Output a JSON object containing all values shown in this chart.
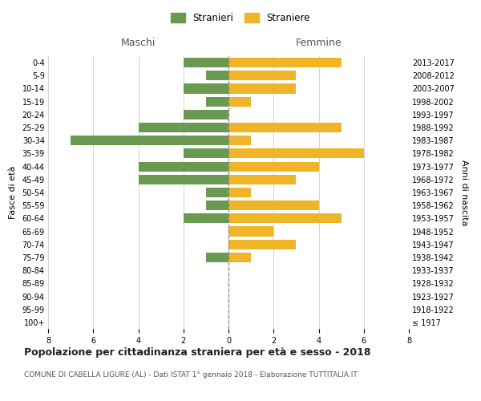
{
  "age_groups": [
    "100+",
    "95-99",
    "90-94",
    "85-89",
    "80-84",
    "75-79",
    "70-74",
    "65-69",
    "60-64",
    "55-59",
    "50-54",
    "45-49",
    "40-44",
    "35-39",
    "30-34",
    "25-29",
    "20-24",
    "15-19",
    "10-14",
    "5-9",
    "0-4"
  ],
  "birth_years": [
    "≤ 1917",
    "1918-1922",
    "1923-1927",
    "1928-1932",
    "1933-1937",
    "1938-1942",
    "1943-1947",
    "1948-1952",
    "1953-1957",
    "1958-1962",
    "1963-1967",
    "1968-1972",
    "1973-1977",
    "1978-1982",
    "1983-1987",
    "1988-1992",
    "1993-1997",
    "1998-2002",
    "2003-2007",
    "2008-2012",
    "2013-2017"
  ],
  "maschi": [
    0,
    0,
    0,
    0,
    0,
    1,
    0,
    0,
    2,
    1,
    1,
    4,
    4,
    2,
    7,
    4,
    2,
    1,
    2,
    1,
    2
  ],
  "femmine": [
    0,
    0,
    0,
    0,
    0,
    1,
    3,
    2,
    5,
    4,
    1,
    3,
    4,
    6,
    1,
    5,
    0,
    1,
    3,
    3,
    5
  ],
  "maschi_color": "#6a9a52",
  "femmine_color": "#f0b429",
  "title": "Popolazione per cittadinanza straniera per età e sesso - 2018",
  "subtitle": "COMUNE DI CABELLA LIGURE (AL) - Dati ISTAT 1° gennaio 2018 - Elaborazione TUTTITALIA.IT",
  "xlabel_left": "Maschi",
  "xlabel_right": "Femmine",
  "ylabel_left": "Fasce di età",
  "ylabel_right": "Anni di nascita",
  "legend_maschi": "Stranieri",
  "legend_femmine": "Straniere",
  "xlim": 8,
  "background_color": "#ffffff",
  "grid_color": "#cccccc"
}
